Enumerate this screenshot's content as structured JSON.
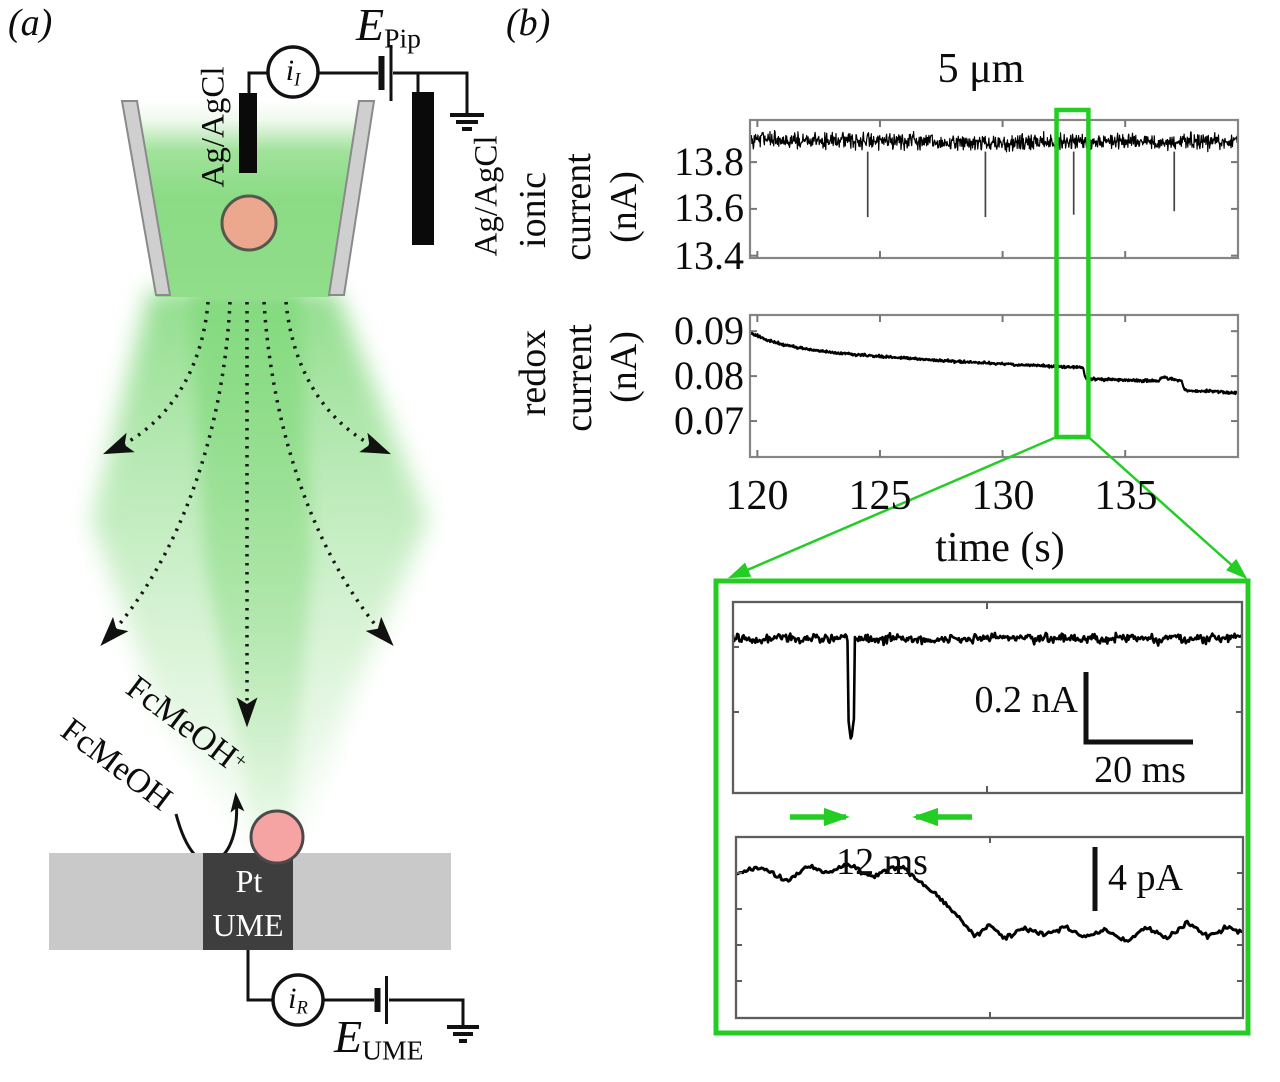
{
  "panel_a": {
    "label": "(a)",
    "electrode_left_label": "Ag/AgCl",
    "electrode_right_label": "Ag/AgCl",
    "ionic_ammeter": {
      "base": "i",
      "sub": "I"
    },
    "pipette_potential": {
      "base": "E",
      "sub": "Pip"
    },
    "molecule_oxidized": {
      "base": "FcMeOH",
      "sup": "+"
    },
    "molecule_reduced": "FcMeOH",
    "electrode_material": "Pt",
    "electrode_type": "UME",
    "redox_ammeter": {
      "base": "i",
      "sub": "R"
    },
    "ume_potential": {
      "base": "E",
      "sub": "UME"
    }
  },
  "panel_b": {
    "label": "(b)",
    "title": "5 μm",
    "ionic_plot": {
      "ylabel_lines": [
        "ionic",
        "current",
        "(nA)"
      ],
      "yticks": [
        "13.8",
        "13.6",
        "13.4"
      ]
    },
    "redox_plot": {
      "ylabel_lines": [
        "redox",
        "current",
        "(nA)"
      ],
      "yticks": [
        "0.09",
        "0.08",
        "0.07"
      ]
    },
    "xticks": [
      "120",
      "125",
      "130",
      "135"
    ],
    "xlabel": "time (s)",
    "inset": {
      "current_scale": "0.2 nA",
      "time_scale": "20 ms",
      "delay": "12 ms",
      "redox_scale": "4 pA"
    }
  },
  "colors": {
    "highlight_green": "#24cd24",
    "plume_green": "#8edc88",
    "particle_top": "#eba88e",
    "particle_bottom": "#f5a3a3",
    "substrate_gray": "#c9c9c9",
    "ume_dark": "#3e3e3e"
  },
  "chart_data": [
    {
      "id": "ionic_current_vs_time",
      "type": "line",
      "title": "5 μm",
      "xlabel": "time (s)",
      "ylabel": "ionic current (nA)",
      "xrange": [
        119.7,
        139.6
      ],
      "yrange": [
        13.39,
        13.98
      ],
      "xticks": [
        120,
        125,
        130,
        135
      ],
      "yticks": [
        13.8,
        13.6,
        13.4
      ],
      "baseline_keypoints": [
        [
          119.7,
          13.893
        ],
        [
          126,
          13.89
        ],
        [
          129.6,
          13.878
        ],
        [
          131.5,
          13.888
        ],
        [
          139.6,
          13.886
        ]
      ],
      "noise_nA": 0.05,
      "spikes": [
        {
          "t": 124.5,
          "from": 13.845,
          "to": 13.565
        },
        {
          "t": 129.3,
          "from": 13.845,
          "to": 13.565
        },
        {
          "t": 132.9,
          "from": 13.845,
          "to": 13.575
        },
        {
          "t": 137.0,
          "from": 13.845,
          "to": 13.59
        }
      ],
      "highlight_window_s": [
        132.2,
        133.5
      ]
    },
    {
      "id": "redox_current_vs_time",
      "type": "line",
      "xlabel": "time (s)",
      "ylabel": "redox current (nA)",
      "xrange": [
        119.7,
        139.6
      ],
      "yrange": [
        0.062,
        0.0936
      ],
      "xticks": [
        120,
        125,
        130,
        135
      ],
      "yticks": [
        0.09,
        0.08,
        0.07
      ],
      "keypoints": [
        [
          119.7,
          0.0897
        ],
        [
          120.4,
          0.088
        ],
        [
          121.3,
          0.0867
        ],
        [
          122.5,
          0.0856
        ],
        [
          124,
          0.0848
        ],
        [
          126,
          0.084
        ],
        [
          128,
          0.0833
        ],
        [
          130,
          0.0827
        ],
        [
          132,
          0.0822
        ],
        [
          133.28,
          0.0819
        ],
        [
          133.38,
          0.0795
        ],
        [
          134.5,
          0.0792
        ],
        [
          136.35,
          0.0789
        ],
        [
          136.5,
          0.0798
        ],
        [
          136.8,
          0.0794
        ],
        [
          137.3,
          0.079
        ],
        [
          137.42,
          0.0768
        ],
        [
          138.5,
          0.0766
        ],
        [
          139.6,
          0.0762
        ]
      ],
      "noise_nA": 0.00045,
      "step_events_s": [
        133.3,
        137.4
      ]
    },
    {
      "id": "inset_ionic_zoom",
      "type": "line",
      "scalebar_current": "0.2 nA",
      "scalebar_time": "20 ms",
      "baseline_frac": 0.19,
      "noise_frac": 0.033,
      "spike": {
        "x_frac": 0.232,
        "depth_frac": 0.73
      }
    },
    {
      "id": "inset_redox_zoom",
      "type": "line",
      "scalebar_current": "4 pA",
      "delay_label": "12 ms",
      "keypoints_frac": [
        [
          0,
          0.2
        ],
        [
          0.05,
          0.17
        ],
        [
          0.1,
          0.24
        ],
        [
          0.14,
          0.16
        ],
        [
          0.18,
          0.2
        ],
        [
          0.22,
          0.15
        ],
        [
          0.27,
          0.22
        ],
        [
          0.3,
          0.18
        ],
        [
          0.33,
          0.17
        ],
        [
          0.36,
          0.24
        ],
        [
          0.4,
          0.33
        ],
        [
          0.44,
          0.45
        ],
        [
          0.47,
          0.55
        ],
        [
          0.5,
          0.49
        ],
        [
          0.53,
          0.56
        ],
        [
          0.57,
          0.5
        ],
        [
          0.61,
          0.54
        ],
        [
          0.65,
          0.5
        ],
        [
          0.69,
          0.55
        ],
        [
          0.73,
          0.51
        ],
        [
          0.77,
          0.58
        ],
        [
          0.81,
          0.5
        ],
        [
          0.85,
          0.56
        ],
        [
          0.89,
          0.47
        ],
        [
          0.93,
          0.55
        ],
        [
          0.97,
          0.5
        ],
        [
          1,
          0.53
        ]
      ],
      "noise_frac": 0.02
    }
  ]
}
